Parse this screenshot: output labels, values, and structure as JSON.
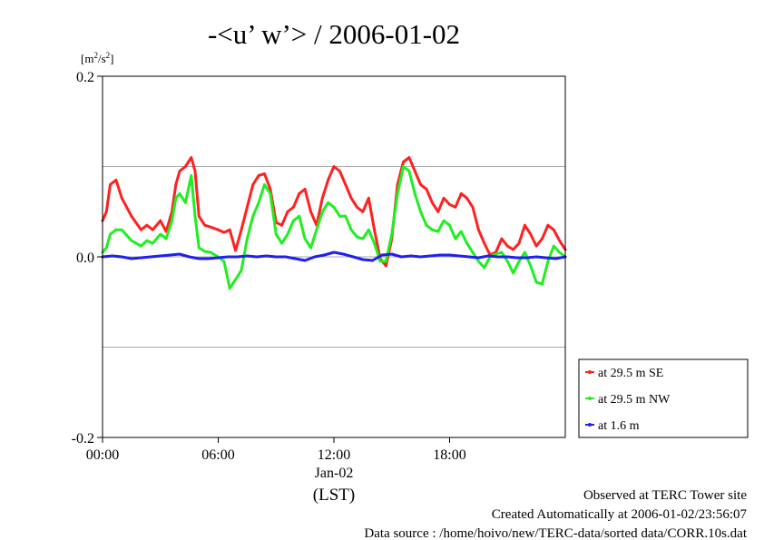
{
  "chart_data": {
    "type": "line",
    "title": "-<u’ w’> / 2006-01-02",
    "yunit_base": "[m",
    "yunit_sup1": "2",
    "yunit_mid": "/s",
    "yunit_sup2": "2",
    "yunit_end": "]",
    "ylim": [
      -0.2,
      0.2
    ],
    "yticks": [
      0.2,
      0.0,
      -0.2
    ],
    "ytick_labels": [
      "0.2",
      "0.0",
      "-0.2"
    ],
    "ygrid": [
      0.1,
      0.0,
      -0.1
    ],
    "xlim": [
      0,
      24
    ],
    "xticks": [
      0,
      6,
      12,
      18
    ],
    "xtick_labels": [
      "00:00",
      "06:00",
      "12:00",
      "18:00"
    ],
    "xdate": "Jan-02",
    "xlabel": "(LST)",
    "legend_position": "right",
    "series": [
      {
        "name": "at 29.5 m SE",
        "color": "#ff2020",
        "x": [
          0,
          0.2,
          0.4,
          0.7,
          1.0,
          1.5,
          2.0,
          2.3,
          2.6,
          3.0,
          3.3,
          3.6,
          3.8,
          4.0,
          4.3,
          4.6,
          4.8,
          5.0,
          5.3,
          5.6,
          6.0,
          6.3,
          6.6,
          6.9,
          7.2,
          7.5,
          7.8,
          8.1,
          8.4,
          8.7,
          9.0,
          9.3,
          9.6,
          9.9,
          10.2,
          10.5,
          10.8,
          11.1,
          11.4,
          11.7,
          12.0,
          12.3,
          12.6,
          12.9,
          13.2,
          13.5,
          13.8,
          14.1,
          14.4,
          14.7,
          15.0,
          15.3,
          15.6,
          15.9,
          16.2,
          16.5,
          16.8,
          17.1,
          17.4,
          17.7,
          18.0,
          18.3,
          18.6,
          18.9,
          19.2,
          19.5,
          19.8,
          20.1,
          20.4,
          20.7,
          21.0,
          21.3,
          21.6,
          21.9,
          22.2,
          22.5,
          22.8,
          23.1,
          23.4,
          23.7,
          24.0
        ],
        "values": [
          0.04,
          0.05,
          0.08,
          0.085,
          0.065,
          0.045,
          0.03,
          0.035,
          0.03,
          0.04,
          0.028,
          0.05,
          0.08,
          0.095,
          0.1,
          0.11,
          0.095,
          0.045,
          0.035,
          0.033,
          0.03,
          0.027,
          0.03,
          0.007,
          0.03,
          0.055,
          0.08,
          0.09,
          0.092,
          0.075,
          0.038,
          0.035,
          0.05,
          0.055,
          0.07,
          0.075,
          0.05,
          0.035,
          0.065,
          0.085,
          0.1,
          0.095,
          0.08,
          0.065,
          0.055,
          0.05,
          0.065,
          0.03,
          -0.002,
          -0.01,
          0.02,
          0.08,
          0.105,
          0.11,
          0.095,
          0.08,
          0.075,
          0.06,
          0.05,
          0.065,
          0.058,
          0.055,
          0.07,
          0.065,
          0.055,
          0.03,
          0.015,
          0.002,
          0.005,
          0.02,
          0.012,
          0.008,
          0.015,
          0.035,
          0.025,
          0.012,
          0.02,
          0.035,
          0.03,
          0.018,
          0.008
        ]
      },
      {
        "name": "at 29.5 m NW",
        "color": "#20ee20",
        "x": [
          0,
          0.2,
          0.4,
          0.7,
          1.0,
          1.5,
          2.0,
          2.3,
          2.6,
          3.0,
          3.3,
          3.6,
          3.8,
          4.0,
          4.3,
          4.6,
          4.8,
          5.0,
          5.3,
          5.6,
          6.0,
          6.3,
          6.6,
          6.9,
          7.2,
          7.5,
          7.8,
          8.1,
          8.4,
          8.7,
          9.0,
          9.3,
          9.6,
          9.9,
          10.2,
          10.5,
          10.8,
          11.1,
          11.4,
          11.7,
          12.0,
          12.3,
          12.6,
          12.9,
          13.2,
          13.5,
          13.8,
          14.1,
          14.4,
          14.7,
          15.0,
          15.3,
          15.6,
          15.9,
          16.2,
          16.5,
          16.8,
          17.1,
          17.4,
          17.7,
          18.0,
          18.3,
          18.6,
          18.9,
          19.2,
          19.5,
          19.8,
          20.1,
          20.4,
          20.7,
          21.0,
          21.3,
          21.6,
          21.9,
          22.2,
          22.5,
          22.8,
          23.1,
          23.4,
          23.7,
          24.0
        ],
        "values": [
          0.005,
          0.01,
          0.025,
          0.03,
          0.03,
          0.018,
          0.012,
          0.018,
          0.015,
          0.025,
          0.02,
          0.04,
          0.065,
          0.07,
          0.06,
          0.09,
          0.045,
          0.01,
          0.006,
          0.005,
          0.0,
          -0.005,
          -0.035,
          -0.025,
          -0.015,
          0.02,
          0.045,
          0.06,
          0.08,
          0.07,
          0.025,
          0.015,
          0.025,
          0.04,
          0.045,
          0.02,
          0.01,
          0.03,
          0.05,
          0.06,
          0.055,
          0.045,
          0.045,
          0.03,
          0.022,
          0.02,
          0.03,
          0.015,
          -0.005,
          -0.005,
          0.025,
          0.07,
          0.1,
          0.095,
          0.07,
          0.05,
          0.035,
          0.03,
          0.028,
          0.04,
          0.035,
          0.02,
          0.028,
          0.015,
          0.005,
          -0.005,
          -0.012,
          0.0,
          0.003,
          0.005,
          -0.005,
          -0.018,
          -0.005,
          0.005,
          -0.01,
          -0.028,
          -0.03,
          -0.005,
          0.012,
          0.005,
          0.0
        ]
      },
      {
        "name": "at 1.6 m",
        "color": "#2020ee",
        "x": [
          0,
          0.5,
          1.0,
          1.5,
          2.0,
          2.5,
          3.0,
          3.5,
          4.0,
          4.5,
          5.0,
          5.5,
          6.0,
          6.5,
          7.0,
          7.5,
          8.0,
          8.5,
          9.0,
          9.5,
          10.0,
          10.5,
          11.0,
          11.5,
          12.0,
          12.5,
          13.0,
          13.5,
          14.0,
          14.5,
          15.0,
          15.5,
          16.0,
          16.5,
          17.0,
          17.5,
          18.0,
          18.5,
          19.0,
          19.5,
          20.0,
          20.5,
          21.0,
          21.5,
          22.0,
          22.5,
          23.0,
          23.5,
          24.0
        ],
        "values": [
          0.0,
          0.001,
          0.0,
          -0.002,
          -0.001,
          0.0,
          0.001,
          0.002,
          0.003,
          0.0,
          -0.002,
          -0.002,
          -0.001,
          0.0,
          0.0,
          0.001,
          0.0,
          0.001,
          0.0,
          0.0,
          -0.002,
          -0.004,
          0.0,
          0.002,
          0.005,
          0.003,
          0.0,
          -0.003,
          -0.004,
          0.002,
          0.003,
          0.0,
          0.001,
          0.0,
          0.001,
          0.002,
          0.002,
          0.001,
          0.0,
          -0.001,
          0.001,
          0.0,
          0.0,
          -0.001,
          -0.001,
          0.0,
          -0.001,
          -0.002,
          0.0
        ]
      }
    ]
  },
  "footer": {
    "line1": "Observed at TERC Tower site",
    "line2": "Created Automatically at 2006-01-02/23:56:07",
    "line3": "Data source : /home/hoivo/new/TERC-data/sorted  data/CORR.10s.dat"
  }
}
